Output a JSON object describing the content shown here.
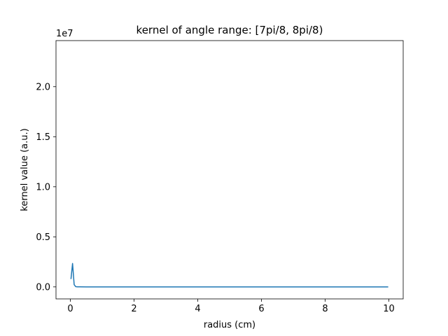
{
  "chart_data": {
    "type": "line",
    "title": "kernel of angle range: [7pi/8, 8pi/8)",
    "xlabel": "radius (cm)",
    "ylabel": "kernel value (a.u.)",
    "y_offset_label": "1e7",
    "xlim": [
      -0.45,
      10.45
    ],
    "ylim": [
      -1.2,
      24.6
    ],
    "x_scale_factor": 1,
    "y_scale_factor": 10000000,
    "xticks": [
      0,
      2,
      4,
      6,
      8,
      10
    ],
    "xtick_labels": [
      "0",
      "2",
      "4",
      "6",
      "8",
      "10"
    ],
    "yticks": [
      0.0,
      0.5,
      1.0,
      1.5,
      2.0
    ],
    "ytick_labels": [
      "0.0",
      "0.5",
      "1.0",
      "1.5",
      "2.0"
    ],
    "grid": false,
    "legend": "none",
    "series": [
      {
        "color": "#1f77b4",
        "x": [
          0.02,
          0.07,
          0.12,
          0.17,
          0.22,
          0.3,
          0.5,
          1.0,
          2.0,
          4.0,
          6.0,
          8.0,
          9.98
        ],
        "y": [
          7800000,
          23400000,
          2200000,
          250000,
          80000,
          30000,
          10000,
          5000,
          2000,
          1000,
          500,
          300,
          200
        ]
      }
    ]
  }
}
